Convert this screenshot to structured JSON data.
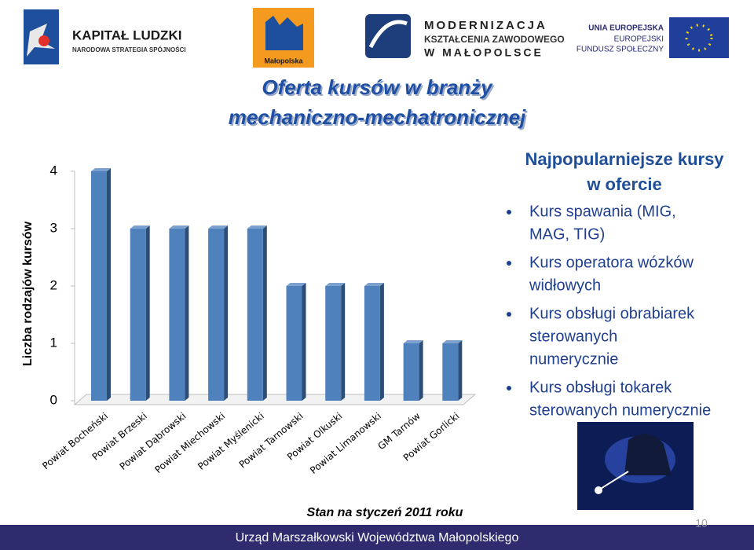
{
  "logos": {
    "kl_title": "KAPITAŁ LUDZKI",
    "kl_sub": "NARODOWA STRATEGIA SPÓJNOŚCI",
    "malopolska": "Małopolska",
    "mod_lines": [
      "MODERNIZACJA",
      "KSZTAŁCENIA ZAWODOWEGO",
      "W MAŁOPOLSCE"
    ],
    "ue_lines": [
      "UNIA EUROPEJSKA",
      "EUROPEJSKI",
      "FUNDUSZ SPOŁECZNY"
    ]
  },
  "title_lines": [
    "Oferta kursów w branży",
    "mechaniczno-mechatronicznej"
  ],
  "panel": {
    "title_lines": [
      "Najpopularniejsze kursy",
      "w ofercie"
    ],
    "bullets": [
      [
        "Kurs spawania (MIG,",
        "MAG, TIG)"
      ],
      [
        "Kurs operatora wózków",
        "widłowych"
      ],
      [
        "Kurs obsługi obrabiarek",
        "sterowanych",
        "numerycznie"
      ],
      [
        "Kurs obsługi tokarek",
        "sterowanych numerycznie"
      ]
    ]
  },
  "caption": "Stan na styczeń 2011 roku",
  "footer": "Urząd Marszałkowski Województwa Małopolskiego",
  "page_number": "10",
  "chart_data": {
    "type": "bar",
    "y_label": "Liczba rodzajów kursów",
    "categories": [
      "Powiat Bocheński",
      "Powiat Brzeski",
      "Powiat Dąbrowski",
      "Powiat Miechowski",
      "Powiat Myślenicki",
      "Powiat Tarnowski",
      "Powiat Olkuski",
      "Powiat Limanowski",
      "GM Tarnów",
      "Powiat Gorlicki"
    ],
    "values": [
      4,
      3,
      3,
      3,
      3,
      2,
      2,
      2,
      1,
      1
    ],
    "color": "#4f81bd",
    "ylim": [
      0,
      4
    ],
    "yticks": [
      0,
      1,
      2,
      3,
      4
    ]
  }
}
